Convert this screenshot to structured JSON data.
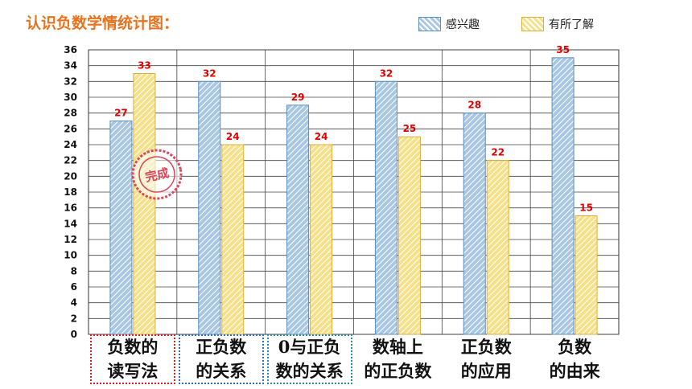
{
  "title": "认识负数学情统计图：",
  "legend": {
    "series1": "感兴趣",
    "series2": "有所了解"
  },
  "stamp_text": "完成",
  "colors": {
    "title": "#e8731c",
    "series1_fill": "#a9c7e2",
    "series1_stroke": "#5b8fbf",
    "series2_fill": "#f6e08a",
    "series2_stroke": "#d9b23c",
    "data_label": "#e00000",
    "stamp": "#d9475a"
  },
  "chart_data": {
    "type": "bar",
    "categories": [
      "负数的读写法",
      "正负数的关系",
      "0与正负数的关系",
      "数轴上的正负数",
      "正负数的应用",
      "负数的由来"
    ],
    "category_lines": [
      [
        "负数的",
        "读写法"
      ],
      [
        "正负数",
        "的关系"
      ],
      [
        "0与正负",
        "数的关系"
      ],
      [
        "数轴上",
        "的正负数"
      ],
      [
        "正负数",
        "的应用"
      ],
      [
        "负数",
        "的由来"
      ]
    ],
    "series": [
      {
        "name": "感兴趣",
        "values": [
          27,
          32,
          29,
          32,
          28,
          35
        ]
      },
      {
        "name": "有所了解",
        "values": [
          33,
          24,
          24,
          25,
          22,
          15
        ]
      }
    ],
    "ylim": [
      0,
      36
    ],
    "yticks": [
      "0",
      "2",
      "4",
      "6",
      "8",
      "10",
      "12",
      "14",
      "16",
      "18",
      "20",
      "22",
      "24",
      "26",
      "28",
      "30",
      "32",
      "34",
      "36"
    ],
    "grid": true,
    "legend_position": "top-right",
    "xlabel": "",
    "ylabel": ""
  }
}
